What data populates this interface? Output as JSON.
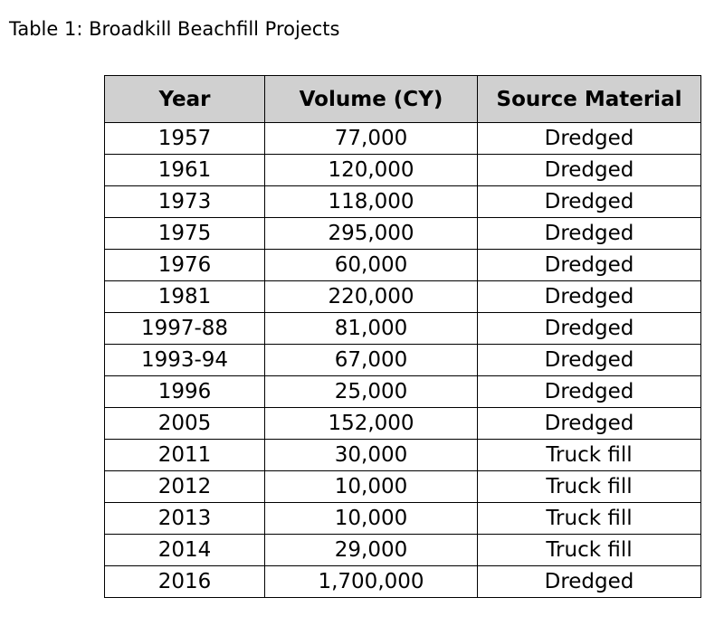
{
  "caption": "Table 1: Broadkill Beachfill Projects",
  "table": {
    "headers": [
      "Year",
      "Volume (CY)",
      "Source Material"
    ],
    "rows": [
      [
        "1957",
        "77,000",
        "Dredged"
      ],
      [
        "1961",
        "120,000",
        "Dredged"
      ],
      [
        "1973",
        "118,000",
        "Dredged"
      ],
      [
        "1975",
        "295,000",
        "Dredged"
      ],
      [
        "1976",
        "60,000",
        "Dredged"
      ],
      [
        "1981",
        "220,000",
        "Dredged"
      ],
      [
        "1997-88",
        "81,000",
        "Dredged"
      ],
      [
        "1993-94",
        "67,000",
        "Dredged"
      ],
      [
        "1996",
        "25,000",
        "Dredged"
      ],
      [
        "2005",
        "152,000",
        "Dredged"
      ],
      [
        "2011",
        "30,000",
        "Truck fill"
      ],
      [
        "2012",
        "10,000",
        "Truck fill"
      ],
      [
        "2013",
        "10,000",
        "Truck fill"
      ],
      [
        "2014",
        "29,000",
        "Truck fill"
      ],
      [
        "2016",
        "1,700,000",
        "Dredged"
      ]
    ]
  },
  "colors": {
    "header_background": "#d0d0d0",
    "border": "#000000",
    "text": "#000000",
    "page_background": "#ffffff"
  }
}
